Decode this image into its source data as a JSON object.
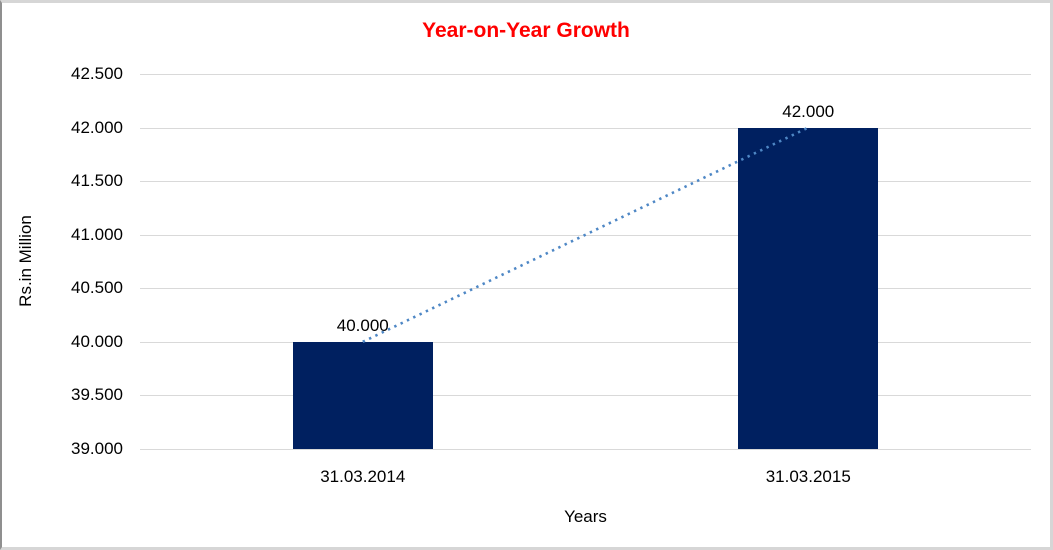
{
  "chart_data": {
    "type": "bar",
    "title": "Year-on-Year Growth",
    "title_color": "#ff0000",
    "categories": [
      "31.03.2014",
      "31.03.2015"
    ],
    "values": [
      40.0,
      42.0
    ],
    "data_labels": [
      "40.000",
      "42.000"
    ],
    "xlabel": "Years",
    "ylabel": "Rs.in Million",
    "ylim": [
      39.0,
      42.5
    ],
    "ytick_step": 0.5,
    "ytick_labels": [
      "39.000",
      "39.500",
      "40.000",
      "40.500",
      "41.000",
      "41.500",
      "42.000",
      "42.500"
    ],
    "grid": true,
    "legend": "none",
    "bar_color": "#002060",
    "gridline_color": "#d9d9d9",
    "trendline": {
      "style": "dotted",
      "color": "#4e87c5",
      "from": {
        "category_index": 0,
        "value": 40.0
      },
      "to": {
        "category_index": 1,
        "value": 42.0
      }
    }
  }
}
